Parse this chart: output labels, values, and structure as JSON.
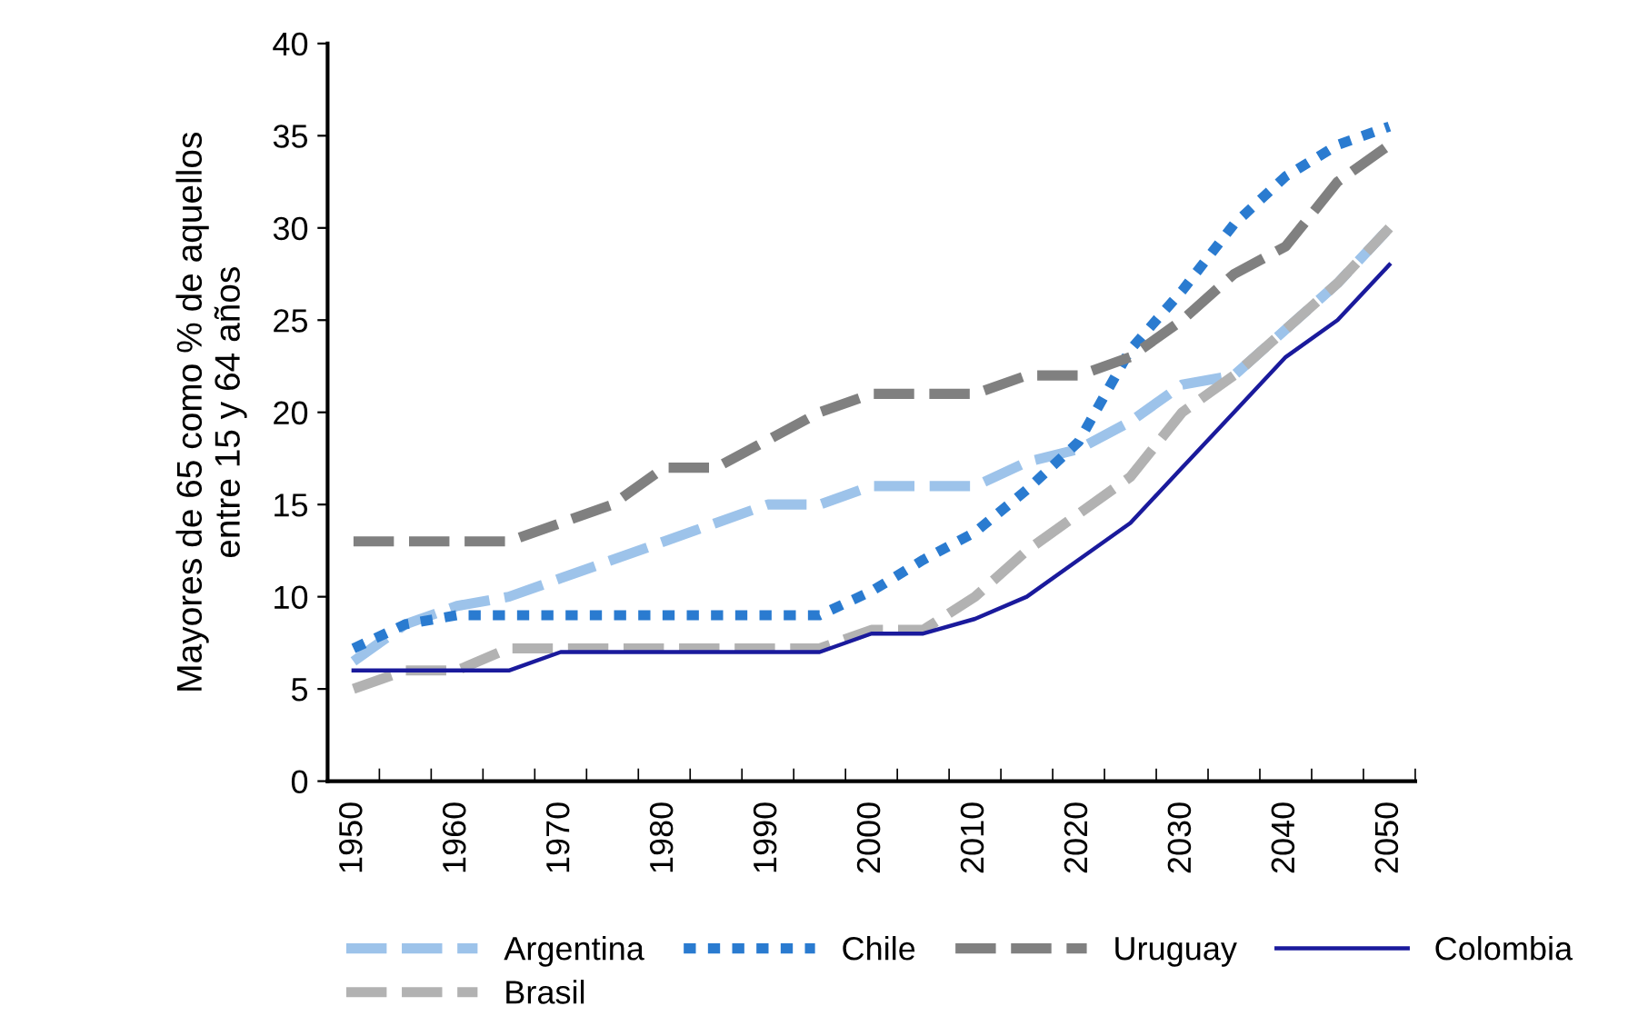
{
  "chart_data": {
    "type": "line",
    "ylabel": "Mayores de 65 como % de aquellos\nentre 15 y 64 años",
    "categories": [
      "1950",
      null,
      "1960",
      null,
      "1970",
      null,
      "1980",
      null,
      "1990",
      null,
      "2000",
      null,
      "2010",
      null,
      "2020",
      null,
      "2030",
      null,
      "2040",
      null,
      "2050"
    ],
    "series": [
      {
        "name": "Argentina",
        "color": "#9dc3ea",
        "line_style": "dashed",
        "values": [
          6.5,
          8.5,
          9.5,
          10,
          11,
          12,
          13,
          14,
          15,
          15,
          16,
          16,
          16,
          17.3,
          18,
          19.5,
          21.5,
          22,
          24.5,
          27,
          30
        ]
      },
      {
        "name": "Brasil",
        "color": "#b2b2b2",
        "line_style": "dashed",
        "values": [
          5,
          6,
          6,
          7.2,
          7.2,
          7.2,
          7.2,
          7.2,
          7.2,
          7.2,
          8.2,
          8.2,
          10,
          12.5,
          14.5,
          16.5,
          20,
          22,
          24.5,
          27,
          30
        ]
      },
      {
        "name": "Chile",
        "color": "#2a7bd0",
        "line_style": "dotted",
        "values": [
          7.2,
          8.5,
          9,
          9,
          9,
          9,
          9,
          9,
          9,
          9,
          10.3,
          12,
          13.5,
          15.8,
          18.4,
          23.4,
          26.6,
          30.2,
          32.8,
          34.5,
          35.5
        ]
      },
      {
        "name": "Uruguay",
        "color": "#808080",
        "line_style": "dashed",
        "values": [
          13,
          13,
          13,
          13,
          14,
          15,
          17,
          17,
          18.5,
          20,
          21,
          21,
          21,
          22,
          22,
          23,
          25,
          27.5,
          29,
          32.5,
          34.5
        ]
      },
      {
        "name": "Colombia",
        "color": "#1a1a9c",
        "line_style": "solid",
        "values": [
          6,
          6,
          6,
          6,
          7,
          7,
          7,
          7,
          7,
          7,
          8,
          8,
          8.8,
          10,
          12,
          14,
          17,
          20,
          23,
          25,
          28
        ]
      }
    ],
    "ylim": [
      0,
      40
    ],
    "yticks": [
      0,
      5,
      10,
      15,
      20,
      25,
      30,
      35,
      40
    ],
    "grid": false,
    "legend": "bottom"
  }
}
